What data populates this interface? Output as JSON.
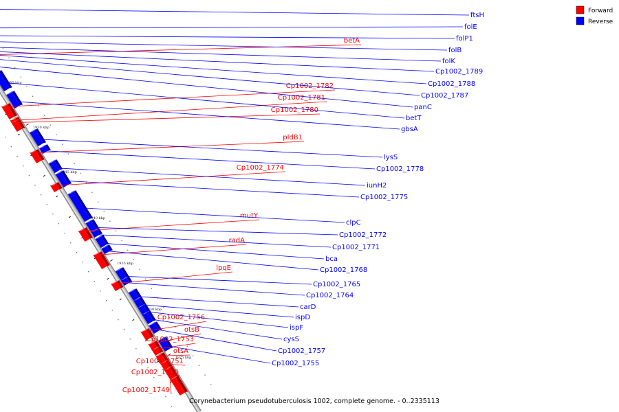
{
  "legend": {
    "forward": {
      "label": "Forward",
      "color": "#ff0000"
    },
    "reverse": {
      "label": "Reverse",
      "color": "#0000ff"
    }
  },
  "footer": "Corynebacterium pseudotuberculosis 1002, complete genome. - 0..2335113",
  "ticks": [
    "1925 kbp",
    "1930 kbp",
    "1935 kbp",
    "1940 kbp",
    "1945 kbp",
    "1950 kbp",
    "1955 kbp",
    "1960 kbp"
  ],
  "forward_genes": [
    "betA",
    "Cp1002_1782",
    "Cp1002_1781",
    "Cp1002_1780",
    "pldB1",
    "Cp1002_1774",
    "mutY",
    "radA",
    "lpqE",
    "Cp1002_1756",
    "otsB",
    "Cp1002_1753",
    "otsA",
    "Cp1002_1751",
    "Cp1002_1750",
    "Cp1002_1749"
  ],
  "reverse_genes": [
    "ftsH",
    "folE",
    "folP1",
    "folB",
    "folK",
    "Cp1002_1789",
    "Cp1002_1788",
    "Cp1002_1787",
    "panC",
    "betT",
    "gbsA",
    "lysS",
    "Cp1002_1778",
    "iunH2",
    "Cp1002_1775",
    "clpC",
    "Cp1002_1772",
    "Cp1002_1771",
    "bca",
    "Cp1002_1768",
    "Cp1002_1765",
    "Cp1002_1764",
    "carD",
    "ispD",
    "ispF",
    "cysS",
    "Cp1002_1757",
    "Cp1002_1755"
  ]
}
